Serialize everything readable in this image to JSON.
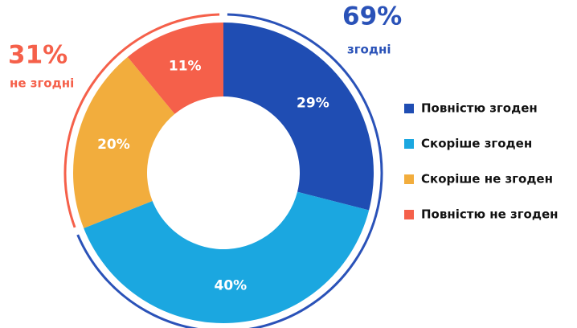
{
  "chart_data": {
    "type": "pie",
    "categories": [
      "Повністю згоден",
      "Скоріше згоден",
      "Скоріше не згоден",
      "Повністю не згоден"
    ],
    "values": [
      29,
      40,
      20,
      11
    ],
    "value_labels": [
      "29%",
      "40%",
      "20%",
      "11%"
    ],
    "colors": [
      "#1f4db3",
      "#1ba7e0",
      "#f2ad3d",
      "#f5604a"
    ],
    "annotations": [
      {
        "value": 69,
        "label": "69%",
        "text": "згодні",
        "color": "#2a52b8"
      },
      {
        "value": 31,
        "label": "31%",
        "text": "не згодні",
        "color": "#f5604a"
      }
    ]
  }
}
